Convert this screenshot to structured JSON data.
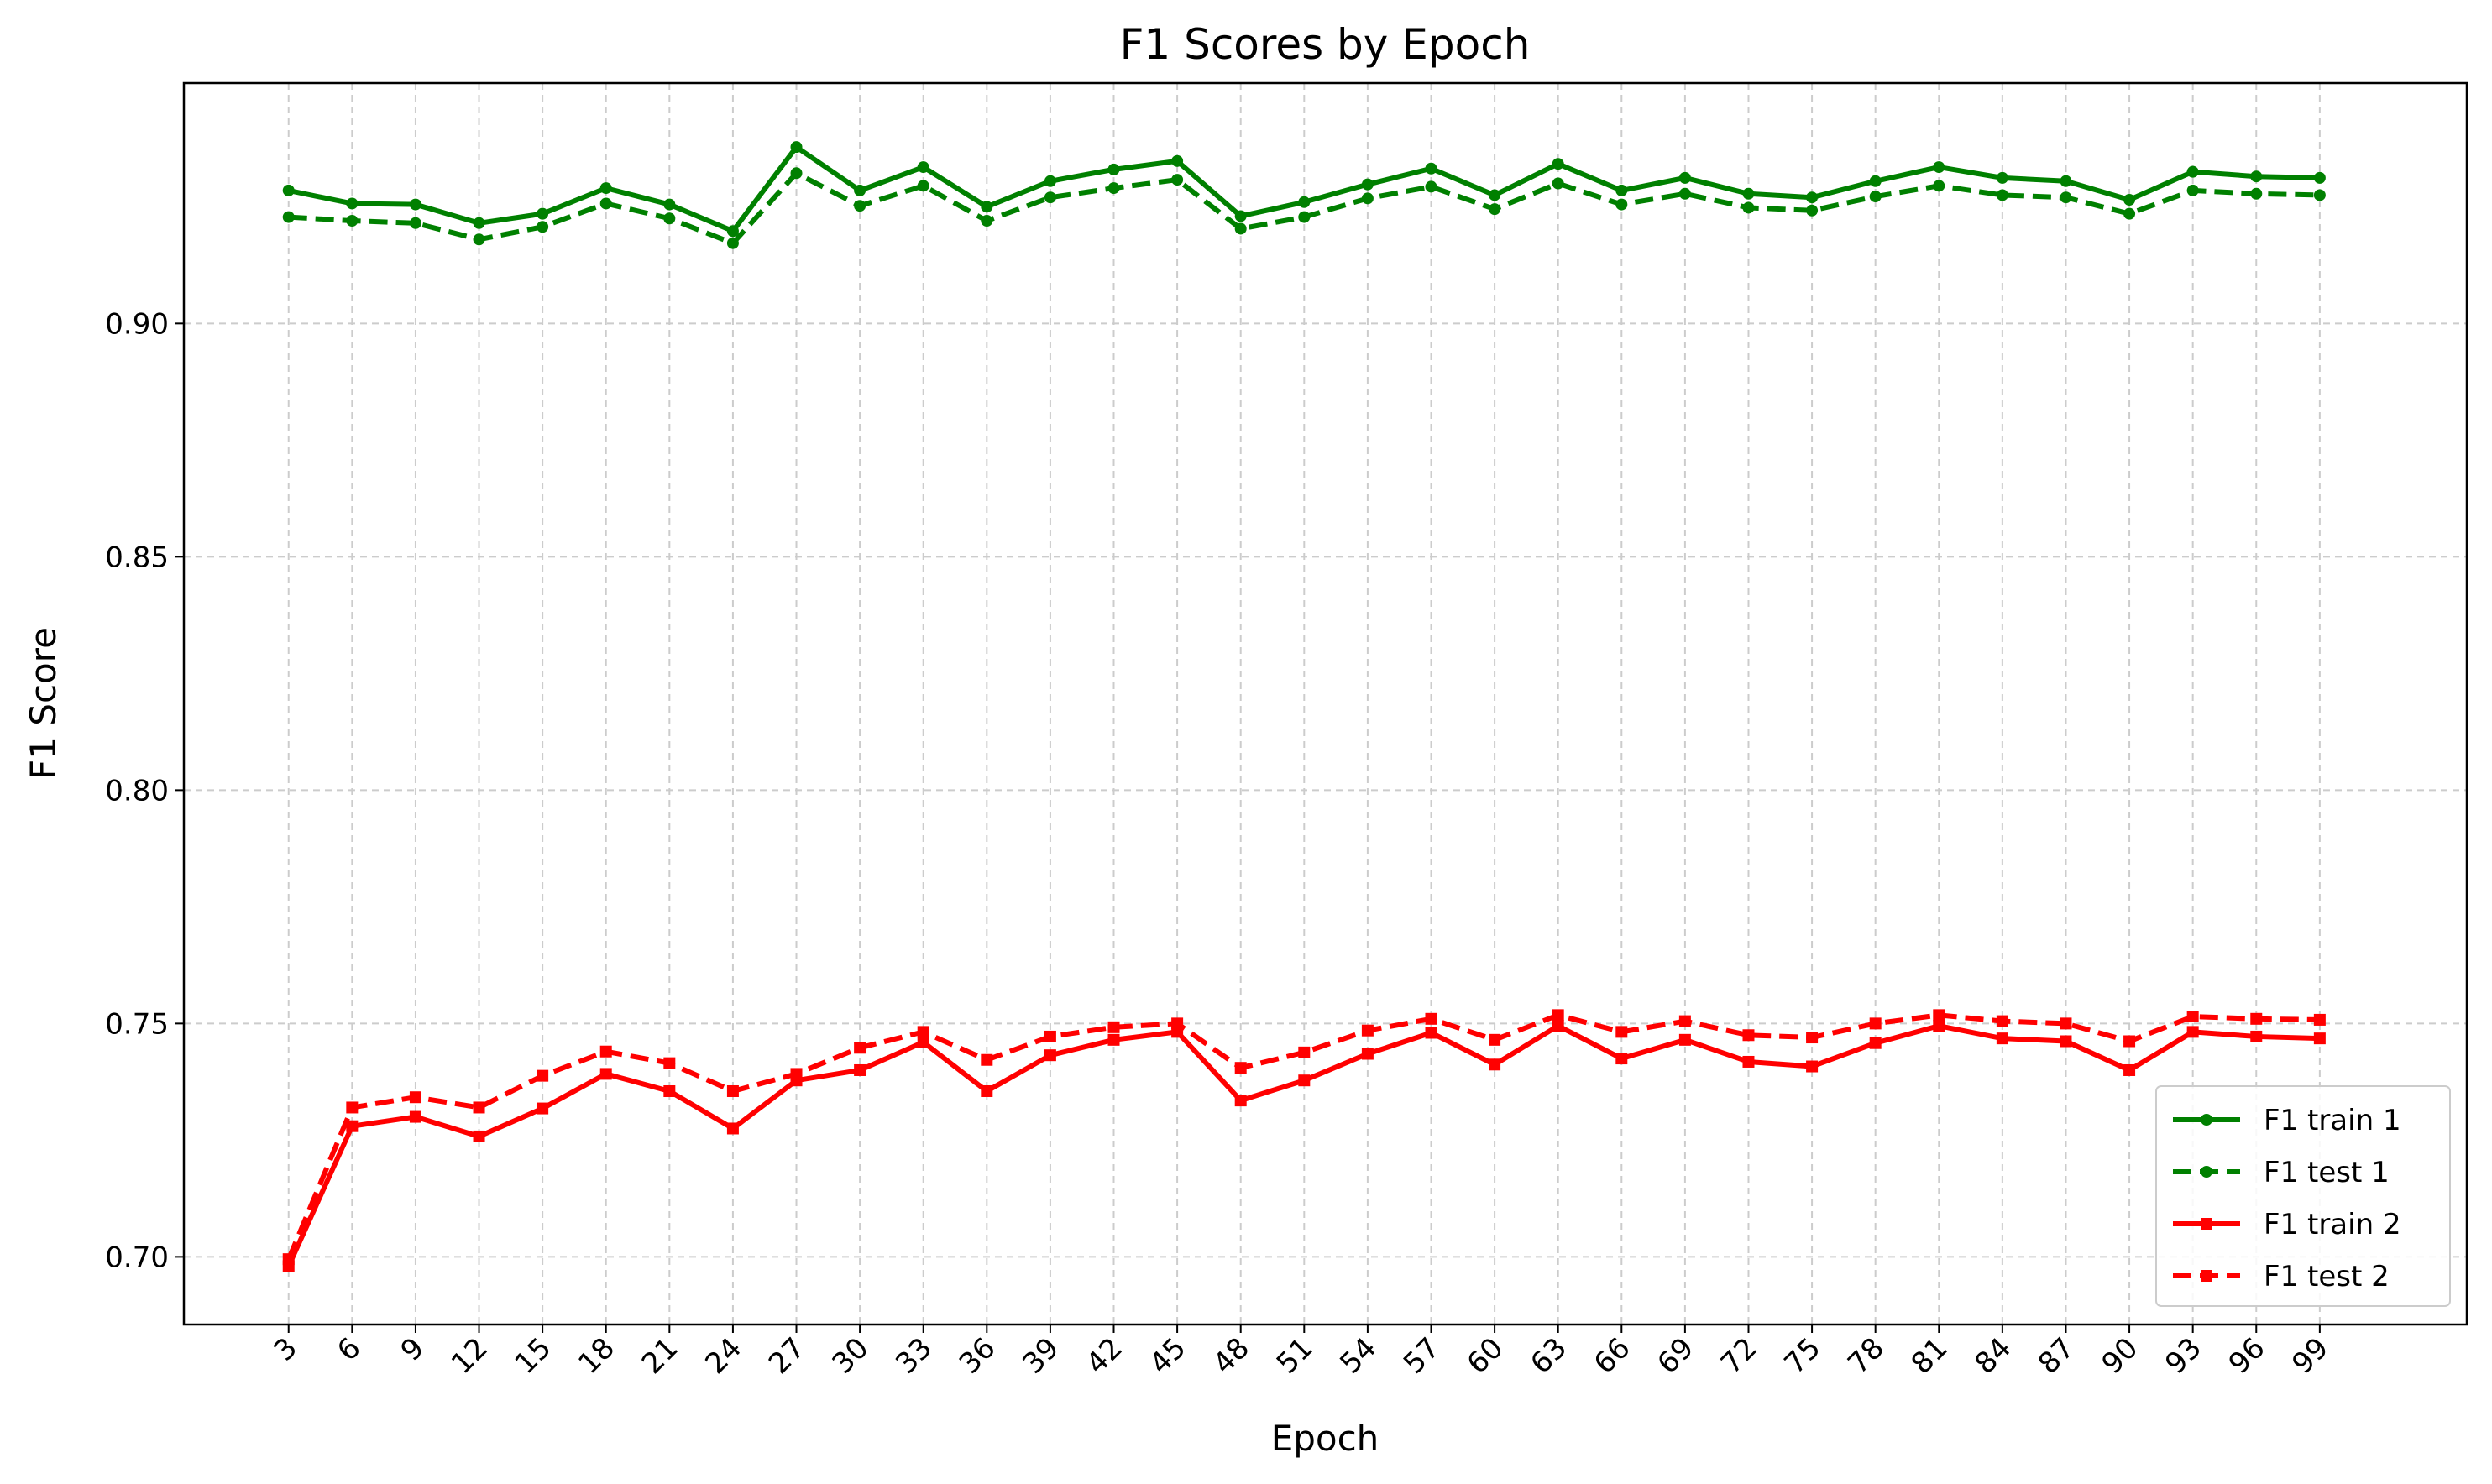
{
  "chart_data": {
    "type": "line",
    "title": "F1 Scores by Epoch",
    "xlabel": "Epoch",
    "ylabel": "F1 Score",
    "x": [
      3,
      6,
      9,
      12,
      15,
      18,
      21,
      24,
      27,
      30,
      33,
      36,
      39,
      42,
      45,
      48,
      51,
      54,
      57,
      60,
      63,
      66,
      69,
      72,
      75,
      78,
      81,
      84,
      87,
      90,
      93,
      96,
      99
    ],
    "xlim": [
      -1.95,
      105.95
    ],
    "ylim": [
      0.6855,
      0.9515
    ],
    "yticks": [
      0.7,
      0.75,
      0.8,
      0.85,
      0.9
    ],
    "ytick_labels": [
      "0.70",
      "0.75",
      "0.80",
      "0.85",
      "0.90"
    ],
    "grid": true,
    "legend_position": "lower-right",
    "series": [
      {
        "name": "F1 train 1",
        "color": "#008000",
        "linestyle": "solid",
        "marker": "circle",
        "values": [
          0.9285,
          0.9257,
          0.9255,
          0.9215,
          0.9235,
          0.929,
          0.9255,
          0.9198,
          0.9378,
          0.9285,
          0.9335,
          0.925,
          0.9305,
          0.933,
          0.9348,
          0.923,
          0.926,
          0.9298,
          0.9332,
          0.9275,
          0.9342,
          0.9285,
          0.9312,
          0.9278,
          0.927,
          0.9305,
          0.9335,
          0.9312,
          0.9305,
          0.9265,
          0.9325,
          0.9315,
          0.9312
        ]
      },
      {
        "name": "F1 test 1",
        "color": "#008000",
        "linestyle": "dashed",
        "marker": "circle",
        "values": [
          0.9228,
          0.922,
          0.9215,
          0.918,
          0.9207,
          0.9257,
          0.9225,
          0.9172,
          0.9322,
          0.9252,
          0.9295,
          0.922,
          0.927,
          0.929,
          0.9308,
          0.9203,
          0.9228,
          0.9268,
          0.9293,
          0.9245,
          0.93,
          0.9255,
          0.9278,
          0.9248,
          0.9242,
          0.9272,
          0.9295,
          0.9275,
          0.927,
          0.9235,
          0.9285,
          0.9278,
          0.9275
        ]
      },
      {
        "name": "F1 train 2",
        "color": "#ff0000",
        "linestyle": "solid",
        "marker": "square",
        "values": [
          0.698,
          0.728,
          0.73,
          0.7258,
          0.7318,
          0.7392,
          0.7355,
          0.7275,
          0.7378,
          0.74,
          0.746,
          0.7355,
          0.7432,
          0.7465,
          0.7482,
          0.7335,
          0.7378,
          0.7435,
          0.748,
          0.7412,
          0.7495,
          0.7425,
          0.7465,
          0.7418,
          0.7408,
          0.7458,
          0.7495,
          0.7468,
          0.7462,
          0.74,
          0.7482,
          0.7472,
          0.7468
        ]
      },
      {
        "name": "F1 test 2",
        "color": "#ff0000",
        "linestyle": "dashed",
        "marker": "square",
        "values": [
          0.6995,
          0.732,
          0.7342,
          0.732,
          0.7388,
          0.744,
          0.7415,
          0.7355,
          0.7392,
          0.7448,
          0.7482,
          0.7422,
          0.7472,
          0.7492,
          0.75,
          0.7405,
          0.7438,
          0.7485,
          0.751,
          0.7465,
          0.7518,
          0.7482,
          0.7505,
          0.7475,
          0.747,
          0.75,
          0.7518,
          0.7505,
          0.75,
          0.7462,
          0.7515,
          0.751,
          0.7508
        ]
      }
    ]
  }
}
